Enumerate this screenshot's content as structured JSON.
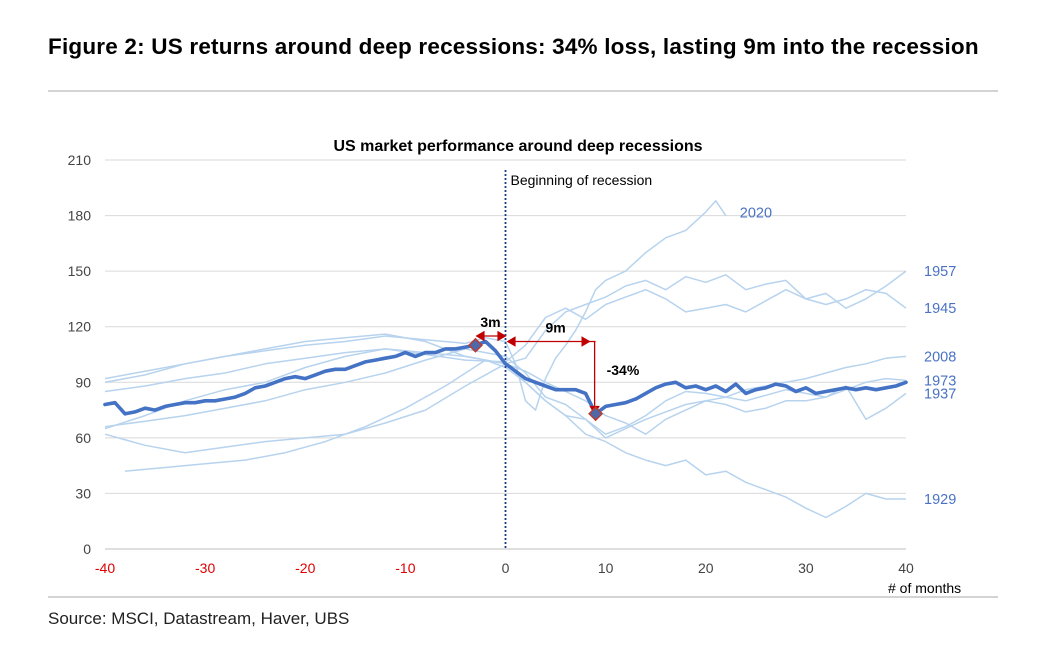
{
  "figure": {
    "title": "Figure 2: US returns around deep recessions: 34% loss, lasting 9m into the recession",
    "source": "Source: MSCI, Datastream, Haver, UBS"
  },
  "colors": {
    "main_series": "#4472c4",
    "light_series": "#b7d3ee",
    "series_label": "#4a72c4",
    "negative_tick": "#e00000",
    "arrow": "#c00000",
    "vline": "#1f3c88"
  },
  "chart_data": {
    "type": "line",
    "title": "US market performance around deep recessions",
    "xlabel": "# of months",
    "ylabel": "",
    "xlim": [
      -40,
      40
    ],
    "ylim": [
      0,
      210
    ],
    "yticks": [
      0,
      30,
      60,
      90,
      120,
      150,
      180,
      210
    ],
    "xticks": [
      -40,
      -30,
      -20,
      -10,
      0,
      10,
      20,
      30,
      40
    ],
    "grid": "horizontal",
    "vline": {
      "x": 0,
      "label": "Beginning of recession"
    },
    "annotations": [
      {
        "text": "3m",
        "x_from": -3,
        "x_to": 0,
        "y": 115
      },
      {
        "text": "9m",
        "x_from": 0,
        "x_to": 9,
        "y": 112
      },
      {
        "text": "-34%",
        "x": 9,
        "y_from": 112,
        "y_to": 74
      }
    ],
    "markers": [
      {
        "x": -3,
        "y": 110
      },
      {
        "x": 9,
        "y": 73
      }
    ],
    "main_series": {
      "x": [
        -40,
        -39,
        -38,
        -37,
        -36,
        -35,
        -34,
        -33,
        -32,
        -31,
        -30,
        -29,
        -28,
        -27,
        -26,
        -25,
        -24,
        -23,
        -22,
        -21,
        -20,
        -19,
        -18,
        -17,
        -16,
        -15,
        -14,
        -13,
        -12,
        -11,
        -10,
        -9,
        -8,
        -7,
        -6,
        -5,
        -4,
        -3,
        -2,
        -1,
        0,
        1,
        2,
        3,
        4,
        5,
        6,
        7,
        8,
        9,
        10,
        11,
        12,
        13,
        14,
        15,
        16,
        17,
        18,
        19,
        20,
        21,
        22,
        23,
        24,
        25,
        26,
        27,
        28,
        29,
        30,
        31,
        32,
        33,
        34,
        35,
        36,
        37,
        38,
        39,
        40
      ],
      "values": [
        78,
        79,
        73,
        74,
        76,
        75,
        77,
        78,
        79,
        79,
        80,
        80,
        81,
        82,
        84,
        87,
        88,
        90,
        92,
        93,
        92,
        94,
        96,
        97,
        97,
        99,
        101,
        102,
        103,
        104,
        106,
        104,
        106,
        106,
        108,
        108,
        109,
        110,
        112,
        107,
        100,
        96,
        92,
        90,
        88,
        86,
        86,
        86,
        84,
        73,
        77,
        78,
        79,
        81,
        84,
        87,
        89,
        90,
        87,
        88,
        86,
        88,
        85,
        89,
        84,
        86,
        87,
        89,
        88,
        85,
        87,
        84,
        85,
        86,
        87,
        86,
        87,
        86,
        87,
        88,
        90
      ]
    },
    "series": [
      {
        "name": "2020",
        "x": [
          -40,
          -36,
          -32,
          -28,
          -24,
          -20,
          -16,
          -12,
          -8,
          -4,
          -2,
          0,
          1,
          2,
          3,
          4,
          5,
          6,
          7,
          8,
          9,
          10,
          12,
          14,
          16,
          18,
          20,
          21,
          22
        ],
        "values": [
          90,
          94,
          100,
          104,
          107,
          110,
          112,
          115,
          113,
          111,
          114,
          112,
          100,
          80,
          75,
          92,
          103,
          110,
          118,
          128,
          140,
          145,
          150,
          160,
          168,
          172,
          182,
          188,
          180
        ]
      },
      {
        "name": "1957",
        "x": [
          -40,
          -36,
          -32,
          -28,
          -24,
          -20,
          -16,
          -12,
          -8,
          -4,
          0,
          2,
          4,
          6,
          8,
          10,
          12,
          14,
          16,
          18,
          20,
          22,
          24,
          26,
          28,
          30,
          32,
          34,
          36,
          38,
          40
        ],
        "values": [
          85,
          88,
          92,
          95,
          100,
          103,
          106,
          108,
          106,
          104,
          100,
          103,
          118,
          128,
          132,
          136,
          142,
          145,
          140,
          147,
          144,
          148,
          140,
          143,
          145,
          135,
          138,
          130,
          135,
          142,
          150
        ]
      },
      {
        "name": "1945",
        "x": [
          -40,
          -36,
          -32,
          -28,
          -24,
          -20,
          -16,
          -12,
          -8,
          -4,
          0,
          2,
          4,
          6,
          8,
          10,
          12,
          14,
          16,
          18,
          20,
          22,
          24,
          26,
          28,
          30,
          32,
          34,
          36,
          38,
          40
        ],
        "values": [
          65,
          72,
          80,
          86,
          90,
          98,
          104,
          108,
          105,
          102,
          101,
          110,
          125,
          130,
          124,
          132,
          136,
          140,
          135,
          128,
          130,
          132,
          128,
          134,
          140,
          135,
          132,
          135,
          140,
          138,
          130
        ]
      },
      {
        "name": "2008",
        "x": [
          -40,
          -36,
          -32,
          -28,
          -24,
          -20,
          -16,
          -12,
          -8,
          -4,
          0,
          2,
          4,
          6,
          8,
          10,
          12,
          14,
          16,
          18,
          20,
          22,
          24,
          26,
          28,
          30,
          32,
          34,
          36,
          38,
          40
        ],
        "values": [
          92,
          96,
          100,
          104,
          108,
          112,
          114,
          116,
          112,
          104,
          100,
          96,
          90,
          85,
          80,
          72,
          68,
          62,
          70,
          75,
          80,
          82,
          86,
          88,
          90,
          92,
          95,
          98,
          100,
          103,
          104
        ]
      },
      {
        "name": "1973",
        "x": [
          -40,
          -36,
          -32,
          -28,
          -24,
          -20,
          -16,
          -12,
          -8,
          -4,
          0,
          2,
          4,
          6,
          8,
          10,
          12,
          14,
          16,
          18,
          20,
          22,
          24,
          26,
          28,
          30,
          32,
          34,
          36,
          38,
          40
        ],
        "values": [
          66,
          69,
          72,
          76,
          80,
          86,
          90,
          95,
          102,
          108,
          104,
          95,
          82,
          78,
          70,
          62,
          66,
          72,
          80,
          85,
          84,
          82,
          80,
          83,
          86,
          84,
          82,
          86,
          90,
          92,
          91
        ]
      },
      {
        "name": "1937",
        "x": [
          -40,
          -36,
          -32,
          -28,
          -24,
          -20,
          -16,
          -12,
          -8,
          -4,
          0,
          2,
          4,
          6,
          8,
          10,
          12,
          14,
          16,
          18,
          20,
          22,
          24,
          26,
          28,
          30,
          32,
          34,
          36,
          38,
          40
        ],
        "values": [
          62,
          56,
          52,
          55,
          58,
          60,
          62,
          68,
          75,
          88,
          100,
          90,
          80,
          72,
          70,
          60,
          65,
          70,
          74,
          78,
          80,
          78,
          74,
          76,
          80,
          80,
          82,
          88,
          70,
          76,
          84
        ]
      },
      {
        "name": "1929",
        "x": [
          -38,
          -34,
          -30,
          -26,
          -22,
          -18,
          -14,
          -10,
          -6,
          -2,
          0,
          2,
          4,
          6,
          8,
          10,
          12,
          14,
          16,
          18,
          20,
          22,
          24,
          26,
          28,
          30,
          32,
          34,
          36,
          38,
          40
        ],
        "values": [
          42,
          44,
          46,
          48,
          52,
          58,
          66,
          76,
          88,
          102,
          98,
          90,
          80,
          72,
          62,
          58,
          52,
          48,
          45,
          48,
          40,
          42,
          36,
          32,
          28,
          22,
          17,
          23,
          30,
          27,
          27
        ]
      }
    ]
  }
}
